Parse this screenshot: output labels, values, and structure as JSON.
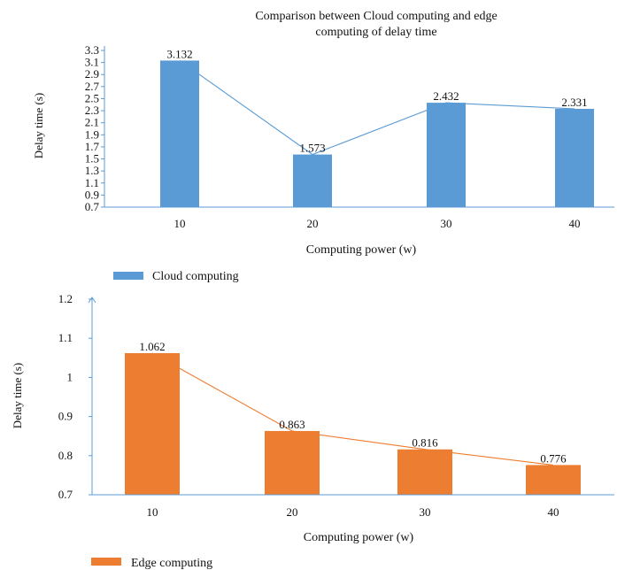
{
  "chart_data": [
    {
      "type": "bar",
      "title_lines": [
        "Comparison between Cloud computing and edge",
        "computing of delay time"
      ],
      "categories": [
        "10",
        "20",
        "30",
        "40"
      ],
      "xlabel": "Computing power (w)",
      "ylabel": "Delay time (s)",
      "ylim": [
        0.7,
        3.3
      ],
      "yticks": [
        "0.7",
        "0.9",
        "1.1",
        "1.3",
        "1.5",
        "1.7",
        "1.9",
        "2.1",
        "2.3",
        "2.5",
        "2.7",
        "2.9",
        "3.1",
        "3.3"
      ],
      "series": [
        {
          "name": "Cloud computing",
          "values": [
            3.132,
            1.573,
            2.432,
            2.331
          ],
          "labels": [
            "3.132",
            "1.573",
            "2.432",
            "2.331"
          ]
        }
      ],
      "line_overlay": true,
      "grid": false,
      "legend_position": "bottom-left",
      "color": "#5b9bd5",
      "line_color": "#5b9bd5"
    },
    {
      "type": "bar",
      "categories": [
        "10",
        "20",
        "30",
        "40"
      ],
      "xlabel": "Computing power (w)",
      "ylabel": "Delay time (s)",
      "ylim": [
        0.7,
        1.2
      ],
      "yticks": [
        "0.7",
        "0.8",
        "0.9",
        "1",
        "1.1",
        "1.2"
      ],
      "series": [
        {
          "name": "Edge computing",
          "values": [
            1.062,
            0.863,
            0.816,
            0.776
          ],
          "labels": [
            "1.062",
            "0.863",
            "0.816",
            "0.776"
          ]
        }
      ],
      "line_overlay": true,
      "grid": false,
      "legend_position": "bottom-left",
      "color": "#ed7d31",
      "line_color": "#ed7d31"
    }
  ]
}
